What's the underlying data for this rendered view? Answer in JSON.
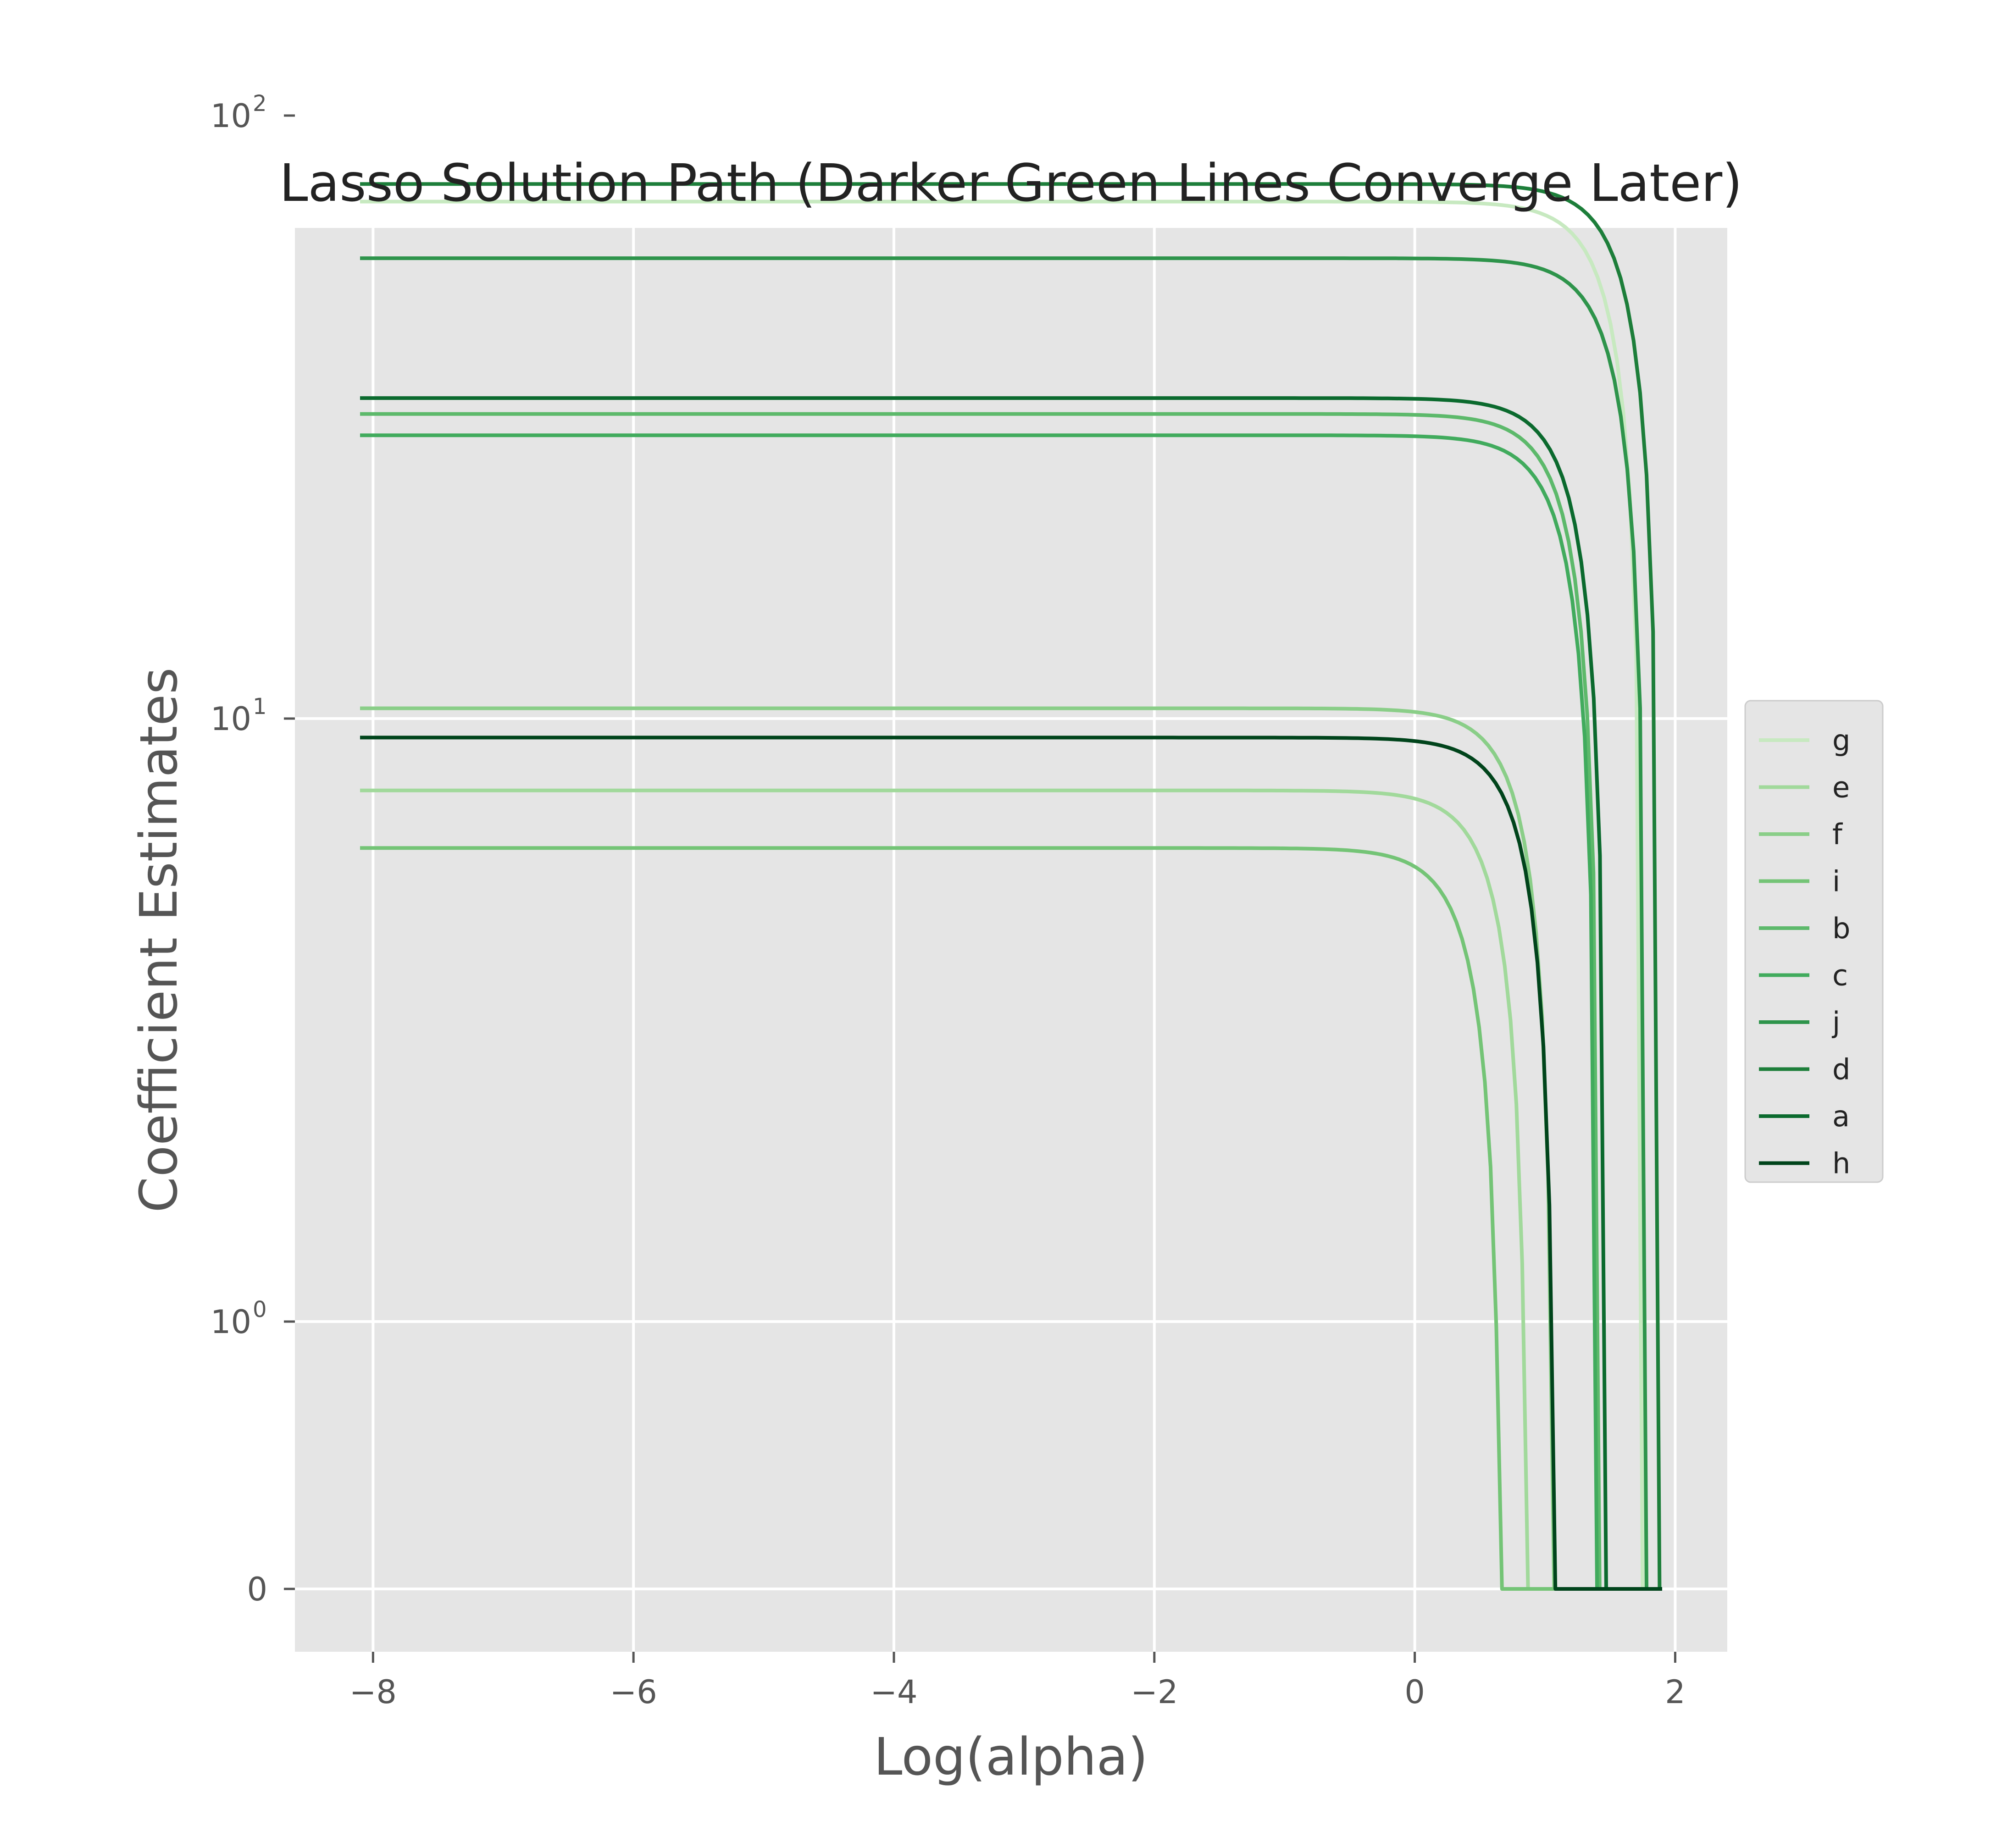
{
  "chart_data": {
    "type": "line",
    "title": "Lasso Solution Path (Darker Green Lines Converge Later)",
    "xlabel": "Log(alpha)",
    "ylabel": "Coefficient Estimates",
    "xlim": [
      -8.6,
      2.4
    ],
    "x_ticks": [
      -8,
      -6,
      -4,
      -2,
      0,
      2
    ],
    "x_tick_labels": [
      "−8",
      "−6",
      "−4",
      "−2",
      "0",
      "2"
    ],
    "y_scale": "symlog",
    "y_ticks": [
      0,
      1,
      10,
      100
    ],
    "y_tick_labels": [
      {
        "base": "0",
        "exp": ""
      },
      {
        "base": "10",
        "exp": "0"
      },
      {
        "base": "10",
        "exp": "1"
      },
      {
        "base": "10",
        "exp": "2"
      }
    ],
    "grid": true,
    "legend_position": "right",
    "x_start": -8.1,
    "series": [
      {
        "name": "g",
        "color": "#c7e9c0",
        "plateau": 72,
        "zero_at": 1.75
      },
      {
        "name": "e",
        "color": "#a1d99b",
        "plateau": 7.6,
        "zero_at": 0.87
      },
      {
        "name": "f",
        "color": "#8ace88",
        "plateau": 10.4,
        "zero_at": 1.07
      },
      {
        "name": "i",
        "color": "#74c476",
        "plateau": 6.1,
        "zero_at": 0.67
      },
      {
        "name": "b",
        "color": "#5db96b",
        "plateau": 32,
        "zero_at": 1.42
      },
      {
        "name": "c",
        "color": "#41ab5d",
        "plateau": 29.5,
        "zero_at": 1.4
      },
      {
        "name": "j",
        "color": "#2e944b",
        "plateau": 58,
        "zero_at": 1.78
      },
      {
        "name": "d",
        "color": "#1d7e3a",
        "plateau": 77,
        "zero_at": 1.88
      },
      {
        "name": "a",
        "color": "#0b6a2e",
        "plateau": 34,
        "zero_at": 1.47
      },
      {
        "name": "h",
        "color": "#00441b",
        "plateau": 9.3,
        "zero_at": 1.08
      }
    ]
  }
}
